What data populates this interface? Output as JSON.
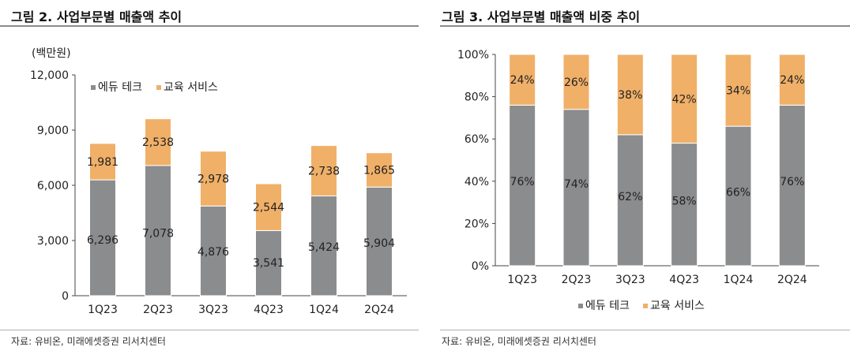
{
  "colors": {
    "edutech": "#8b8c8e",
    "education_service": "#f0b068",
    "axis": "#444444",
    "text": "#222222"
  },
  "left": {
    "title": "그림 2. 사업부문별 매출액 추이",
    "source": "자료: 유비온, 미래에셋증권 리서치센터"
  },
  "right": {
    "title": "그림 3. 사업부문별 매출액 비중 추이",
    "source": "자료: 유비온, 미래에셋증권 리서치센터"
  },
  "chart_data": [
    {
      "type": "bar",
      "stacked": true,
      "title": "그림 2. 사업부문별 매출액 추이",
      "unit_label": "(백만원)",
      "categories": [
        "1Q23",
        "2Q23",
        "3Q23",
        "4Q23",
        "1Q24",
        "2Q24"
      ],
      "series": [
        {
          "name": "에듀 테크",
          "values": [
            6296,
            7078,
            4876,
            3541,
            5424,
            5904
          ],
          "labels": [
            "6,296",
            "7,078",
            "4,876",
            "3,541",
            "5,424",
            "5,904"
          ]
        },
        {
          "name": "교육 서비스",
          "values": [
            1981,
            2538,
            2978,
            2544,
            2738,
            1865
          ],
          "labels": [
            "1,981",
            "2,538",
            "2,978",
            "2,544",
            "2,738",
            "1,865"
          ]
        }
      ],
      "ylim": [
        0,
        12000
      ],
      "yticks": [
        0,
        3000,
        6000,
        9000,
        12000
      ],
      "ytick_labels": [
        "0",
        "3,000",
        "6,000",
        "9,000",
        "12,000"
      ],
      "legend": "top-left",
      "grid": false
    },
    {
      "type": "bar",
      "stacked": true,
      "title": "그림 3. 사업부문별 매출액 비중 추이",
      "categories": [
        "1Q23",
        "2Q23",
        "3Q23",
        "4Q23",
        "1Q24",
        "2Q24"
      ],
      "series": [
        {
          "name": "에듀 테크",
          "values": [
            76,
            74,
            62,
            58,
            66,
            76
          ],
          "labels": [
            "76%",
            "74%",
            "62%",
            "58%",
            "66%",
            "76%"
          ]
        },
        {
          "name": "교육 서비스",
          "values": [
            24,
            26,
            38,
            42,
            34,
            24
          ],
          "labels": [
            "24%",
            "26%",
            "38%",
            "42%",
            "34%",
            "24%"
          ]
        }
      ],
      "ylim": [
        0,
        100
      ],
      "yticks": [
        0,
        20,
        40,
        60,
        80,
        100
      ],
      "ytick_labels": [
        "0%",
        "20%",
        "40%",
        "60%",
        "80%",
        "100%"
      ],
      "legend": "bottom",
      "grid": false
    }
  ]
}
